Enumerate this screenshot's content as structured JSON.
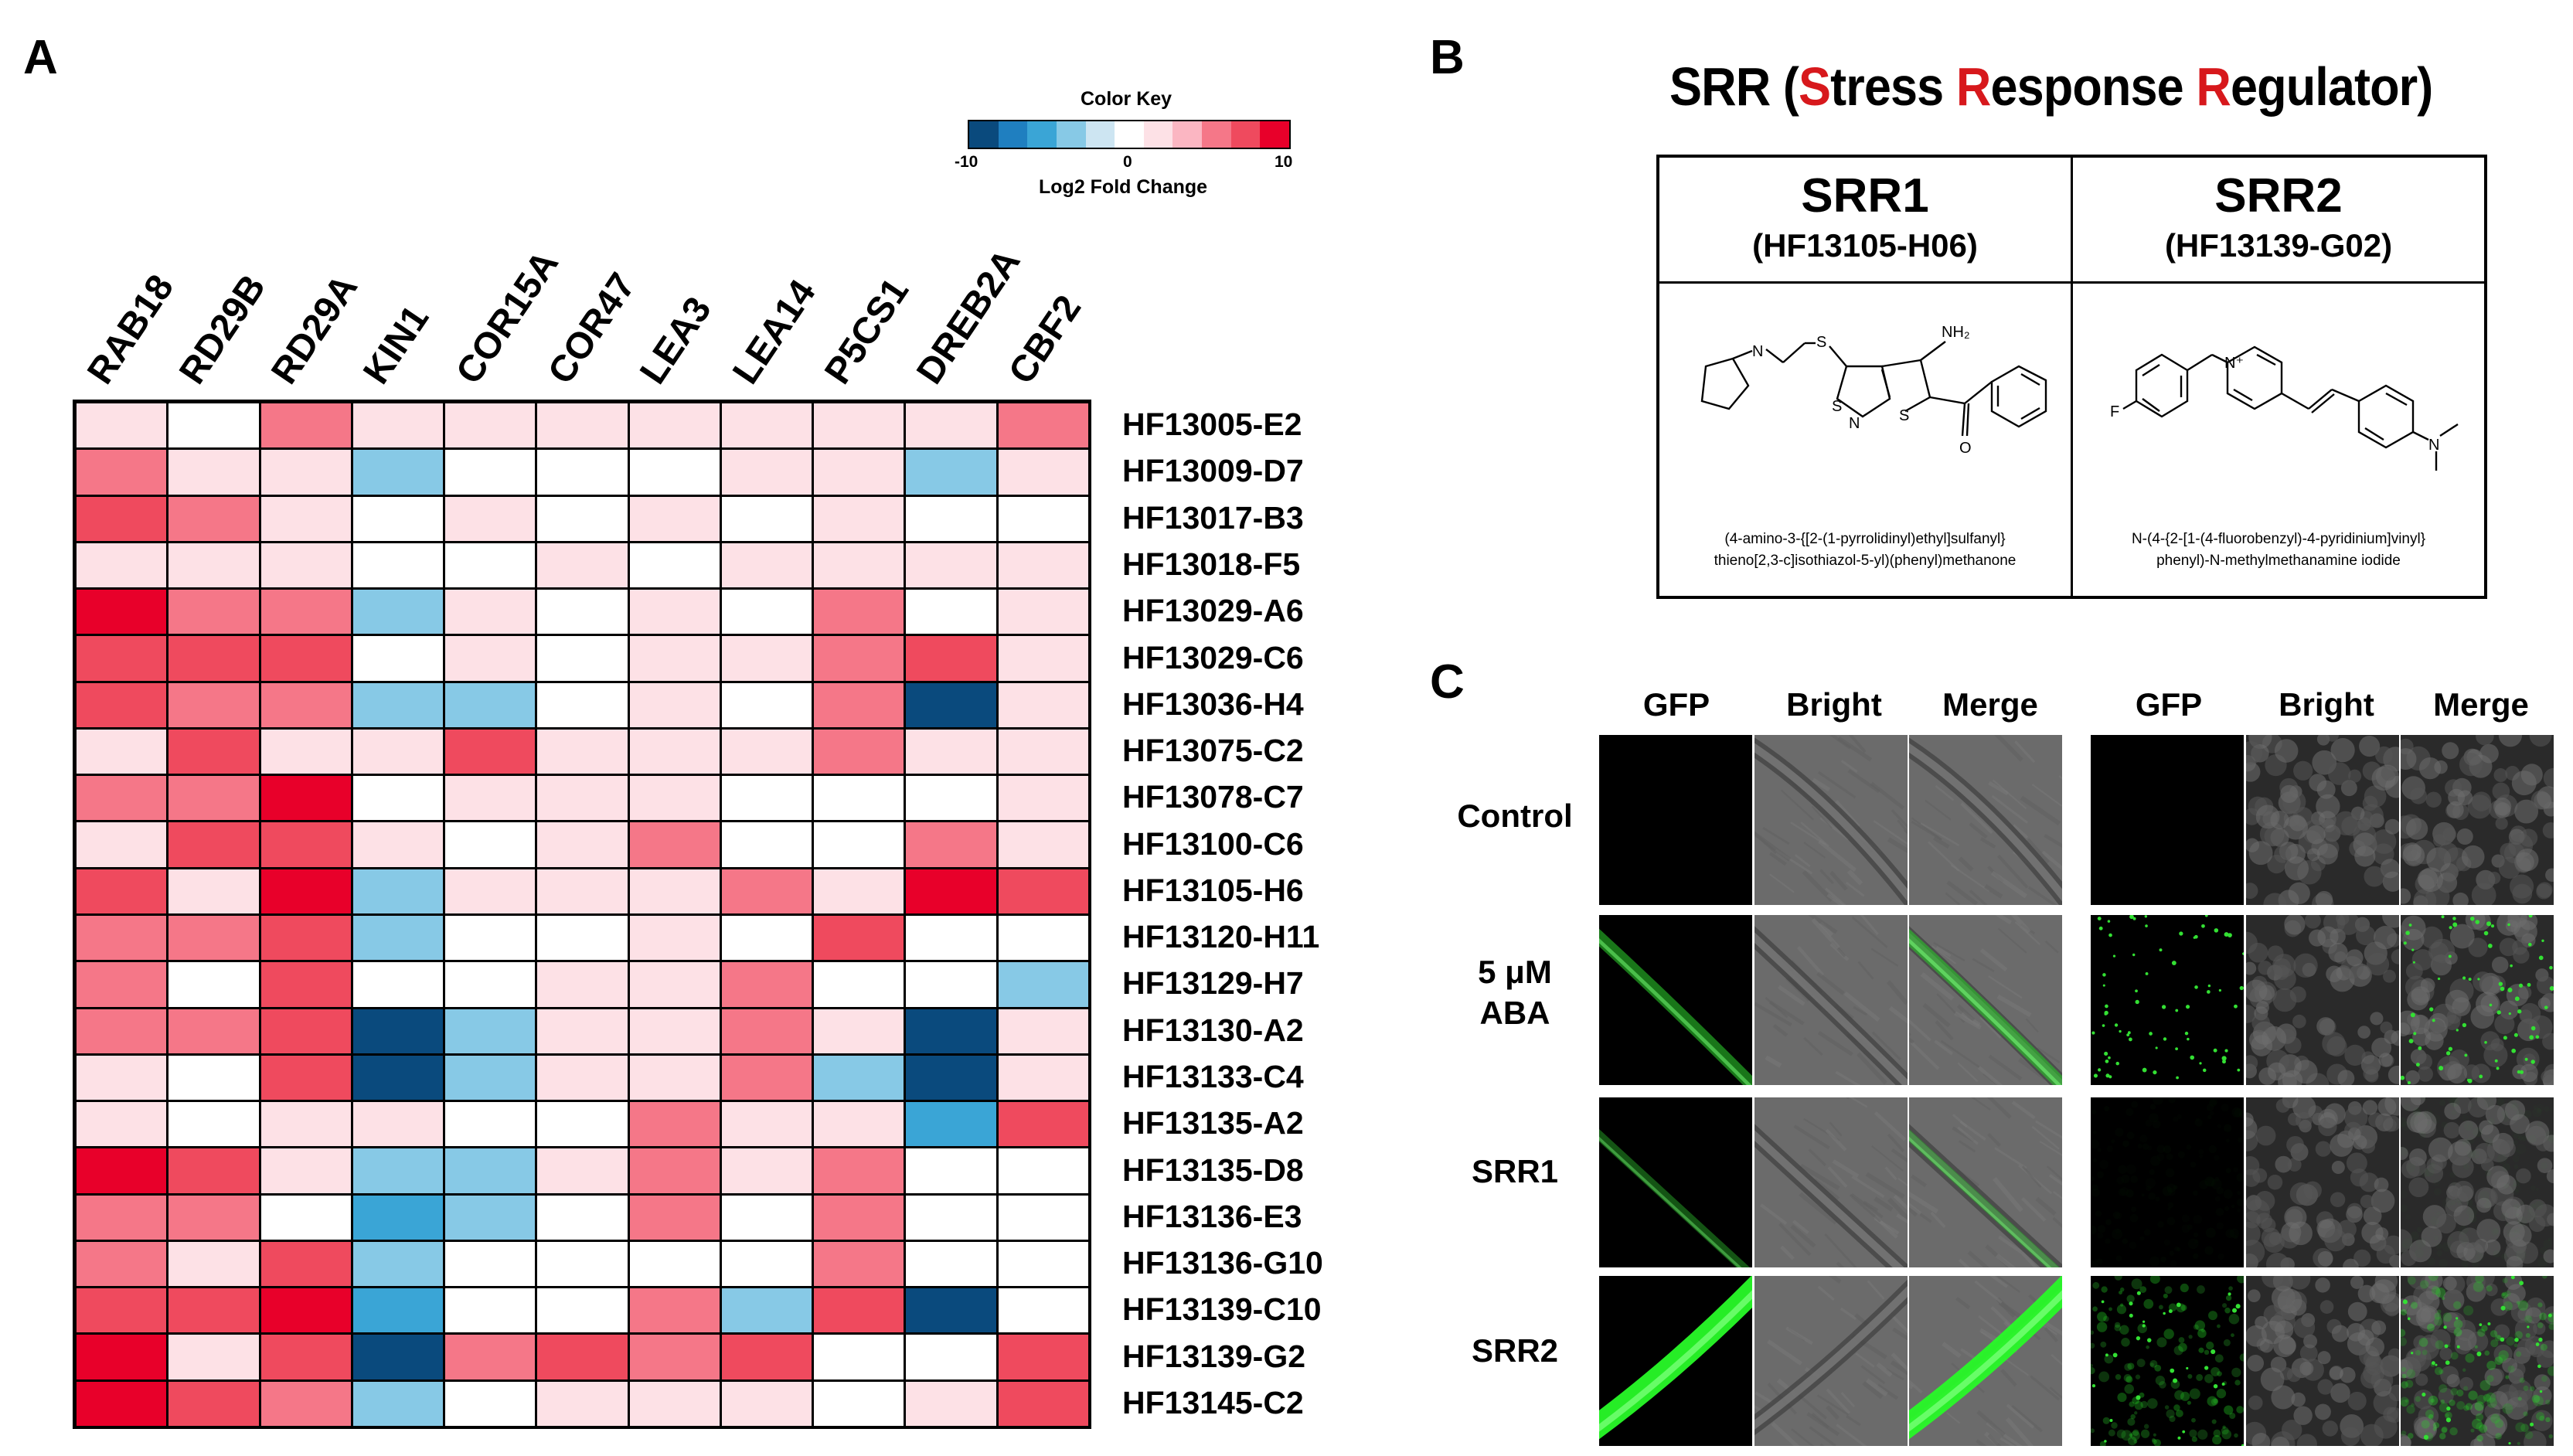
{
  "panels": {
    "a": "A",
    "b": "B",
    "c": "C"
  },
  "color_key": {
    "title": "Color Key",
    "subtitle": "Log2 Fold Change",
    "ticks": [
      "-10",
      "0",
      "10"
    ],
    "colors": [
      "#0a4a7d",
      "#1f7fc0",
      "#3aa5d6",
      "#87c9e6",
      "#cde5f2",
      "#ffffff",
      "#fde1e6",
      "#fbb6c2",
      "#f57788",
      "#ef4a5e",
      "#e8002a"
    ]
  },
  "chart_data": {
    "type": "heatmap",
    "title": "",
    "genes": [
      "RAB18",
      "RD29B",
      "RD29A",
      "KIN1",
      "COR15A",
      "COR47",
      "LEA3",
      "LEA14",
      "P5CS1",
      "DREB2A",
      "CBF2"
    ],
    "compounds": [
      "HF13005-E2",
      "HF13009-D7",
      "HF13017-B3",
      "HF13018-F5",
      "HF13029-A6",
      "HF13029-C6",
      "HF13036-H4",
      "HF13075-C2",
      "HF13078-C7",
      "HF13100-C6",
      "HF13105-H6",
      "HF13120-H11",
      "HF13129-H7",
      "HF13130-A2",
      "HF13133-C4",
      "HF13135-A2",
      "HF13135-D8",
      "HF13136-E3",
      "HF13136-G10",
      "HF13139-C10",
      "HF13139-G2",
      "HF13145-C2"
    ],
    "value_range": [
      -10,
      10
    ],
    "values": [
      [
        1,
        -1,
        5,
        1,
        1,
        1,
        1,
        1,
        1,
        1,
        5
      ],
      [
        5,
        1,
        1,
        -5,
        -1,
        -1,
        0,
        1,
        1,
        -5,
        1
      ],
      [
        7,
        5,
        1,
        -1,
        1,
        -1,
        1,
        -1,
        1,
        0,
        -1
      ],
      [
        1,
        1,
        1,
        -1,
        -1,
        1,
        0,
        1,
        1,
        1,
        1
      ],
      [
        10,
        5,
        5,
        -5,
        1,
        -1,
        1,
        -1,
        5,
        0,
        1
      ],
      [
        7,
        7,
        7,
        -1,
        1,
        -1,
        1,
        1,
        5,
        7,
        1
      ],
      [
        8,
        5,
        5,
        -5,
        -5,
        -1,
        1,
        -1,
        5,
        -10,
        1
      ],
      [
        1,
        7,
        1,
        1,
        8,
        1,
        1,
        1,
        5,
        1,
        1
      ],
      [
        5,
        5,
        10,
        -1,
        1,
        1,
        1,
        -1,
        -1,
        -1,
        1
      ],
      [
        1,
        7,
        7,
        1,
        -1,
        1,
        5,
        -1,
        0,
        5,
        1
      ],
      [
        8,
        1,
        10,
        -5,
        1,
        1,
        1,
        5,
        1,
        10,
        8
      ],
      [
        5,
        5,
        7,
        -5,
        -1,
        -1,
        1,
        -1,
        7,
        -1,
        -1
      ],
      [
        5,
        -1,
        7,
        0,
        -1,
        1,
        1,
        5,
        0,
        -1,
        -5
      ],
      [
        5,
        5,
        7,
        -10,
        -5,
        1,
        1,
        5,
        1,
        -10,
        1
      ],
      [
        1,
        -1,
        8,
        -10,
        -5,
        1,
        1,
        5,
        -5,
        -10,
        1
      ],
      [
        1,
        -1,
        1,
        1,
        -1,
        -1,
        5,
        1,
        1,
        -7,
        8
      ],
      [
        10,
        7,
        1,
        -5,
        -5,
        1,
        5,
        1,
        5,
        -1,
        -1
      ],
      [
        5,
        5,
        -1,
        -7,
        -5,
        -1,
        5,
        -1,
        5,
        -1,
        -1
      ],
      [
        5,
        1,
        7,
        -5,
        -1,
        -1,
        -1,
        -1,
        5,
        -1,
        -1
      ],
      [
        8,
        8,
        10,
        -7,
        -1,
        -1,
        5,
        -5,
        8,
        -10,
        -1
      ],
      [
        10,
        1,
        7,
        -10,
        5,
        7,
        5,
        8,
        -1,
        0,
        8
      ],
      [
        10,
        7,
        5,
        -5,
        -1,
        1,
        1,
        1,
        -1,
        1,
        7
      ]
    ]
  },
  "panel_b": {
    "title_parts": [
      "SRR (",
      "S",
      "tress ",
      "R",
      "esponse ",
      "R",
      "egulator)"
    ],
    "compounds": [
      {
        "name": "SRR1",
        "id": "(HF13105-H06)",
        "chem_line1": "(4-amino-3-{[2-(1-pyrrolidinyl)ethyl]sulfanyl}",
        "chem_line2": "thieno[2,3-c]isothiazol-5-yl)(phenyl)methanone",
        "atom_nh2": "NH₂",
        "atom_s1": "S",
        "atom_s2": "S",
        "atom_n": "N",
        "atom_o": "O",
        "atom_ring_n": "N"
      },
      {
        "name": "SRR2",
        "id": "(HF13139-G02)",
        "chem_line1": "N-(4-{2-[1-(4-fluorobenzyl)-4-pyridinium]vinyl}",
        "chem_line2": "phenyl)-N-methylmethanamine iodide",
        "atom_f": "F",
        "atom_nplus": "N⁺",
        "atom_n": "N"
      }
    ]
  },
  "panel_c": {
    "column_labels": [
      "GFP",
      "Bright",
      "Merge",
      "GFP",
      "Bright",
      "Merge"
    ],
    "row_labels": [
      "Control",
      "5 μM",
      "ABA",
      "SRR1",
      "SRR2"
    ]
  }
}
